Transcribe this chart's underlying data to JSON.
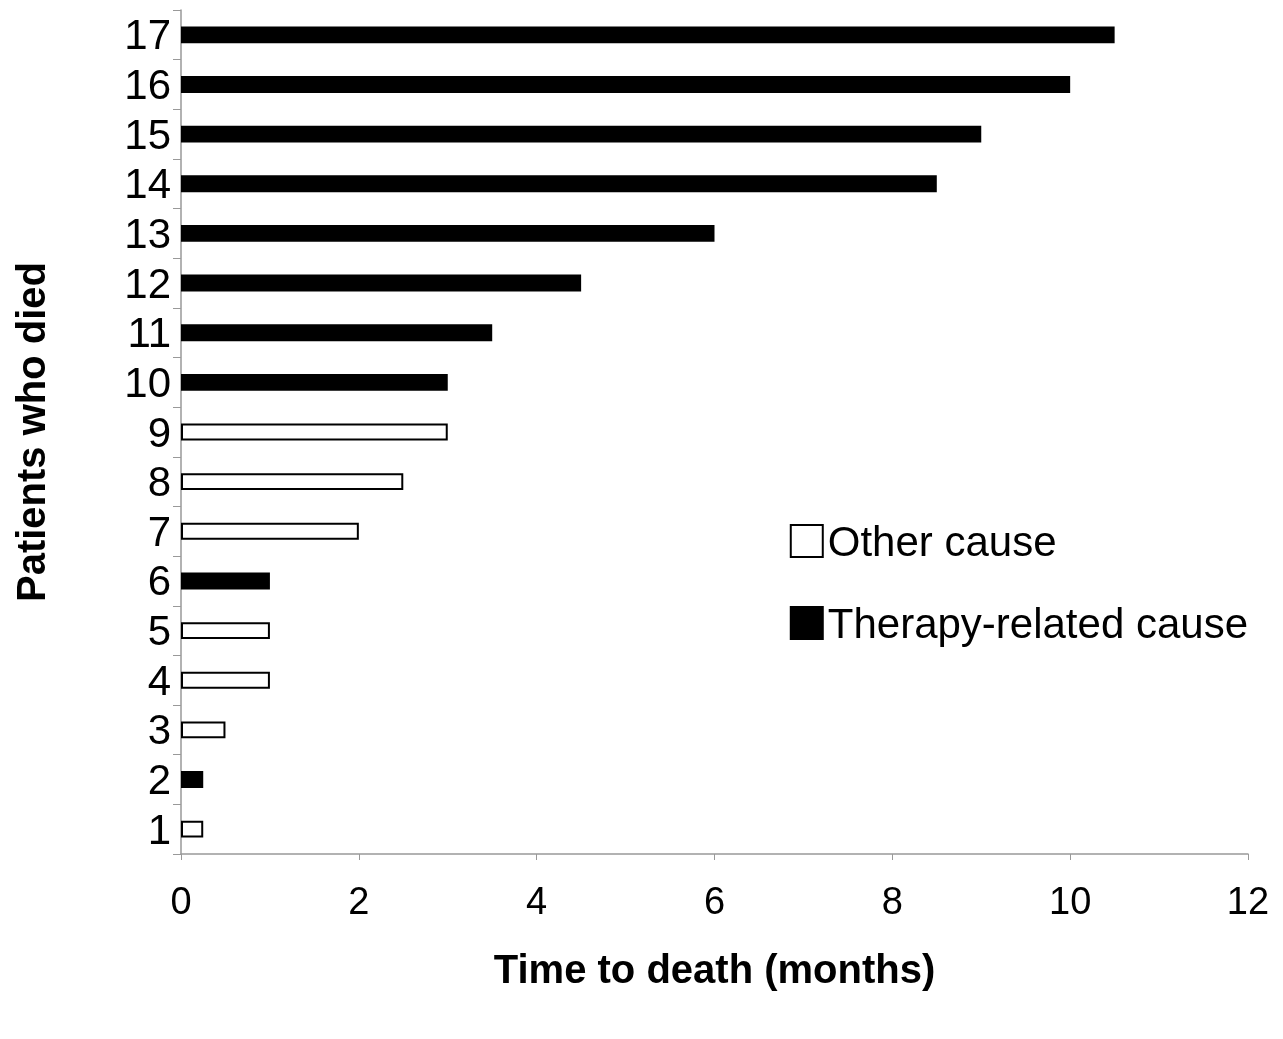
{
  "chart_data": {
    "type": "bar",
    "orientation": "horizontal",
    "stacked": true,
    "xlabel": "Time to death (months)",
    "ylabel": "Patients who died",
    "categories": [
      "17",
      "16",
      "15",
      "14",
      "13",
      "12",
      "11",
      "10",
      "9",
      "8",
      "7",
      "6",
      "5",
      "4",
      "3",
      "2",
      "1"
    ],
    "series": [
      {
        "name": "Other cause",
        "color": "#ffffff",
        "values": [
          null,
          null,
          null,
          null,
          null,
          null,
          null,
          null,
          3,
          2.5,
          2,
          null,
          1,
          1,
          0.5,
          null,
          0.25
        ]
      },
      {
        "name": "Therapy-related cause",
        "color": "#000000",
        "values": [
          10.5,
          10,
          9,
          8.5,
          6,
          4.5,
          3.5,
          3,
          null,
          null,
          null,
          1,
          null,
          null,
          null,
          0.25,
          null
        ]
      }
    ],
    "xlim": [
      0,
      12
    ],
    "xticks": [
      0,
      2,
      4,
      6,
      8,
      10,
      12
    ],
    "grid": false,
    "legend": "right"
  }
}
